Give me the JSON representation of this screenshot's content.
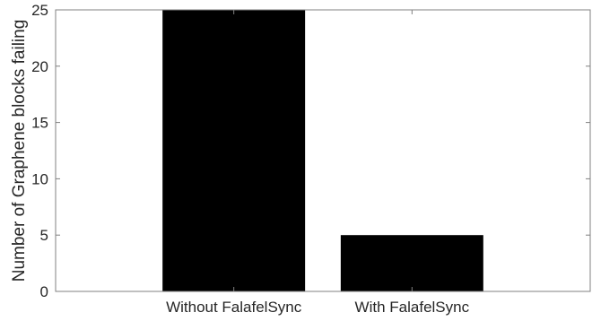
{
  "chart_data": {
    "type": "bar",
    "categories": [
      "Without FalafelSync",
      "With FalafelSync"
    ],
    "values": [
      25,
      5
    ],
    "title": "",
    "xlabel": "",
    "ylabel": "Number of Graphene blocks failing",
    "ylim": [
      0,
      25
    ],
    "yticks": [
      0,
      5,
      10,
      15,
      20,
      25
    ],
    "grid": false,
    "bar_color": "#000000",
    "axis_color": "#808080",
    "text_color": "#262626"
  }
}
